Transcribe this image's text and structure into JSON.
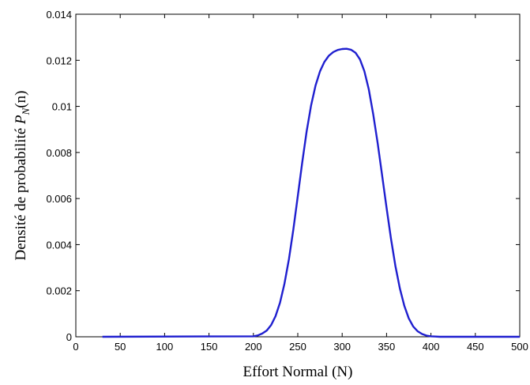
{
  "chart_data": {
    "type": "line",
    "xlabel": "Effort Normal (N)",
    "ylabel_prefix": "Densité de probabilité ",
    "ylabel_symbol": "P",
    "ylabel_subscript": "N",
    "ylabel_suffix": "(n)",
    "xlim": [
      0,
      500
    ],
    "ylim": [
      0,
      0.014
    ],
    "xticks": [
      0,
      50,
      100,
      150,
      200,
      250,
      300,
      350,
      400,
      450,
      500
    ],
    "xtick_labels": [
      "0",
      "50",
      "100",
      "150",
      "200",
      "250",
      "300",
      "350",
      "400",
      "450",
      "500"
    ],
    "yticks": [
      0,
      0.002,
      0.004,
      0.006,
      0.008,
      0.01,
      0.012,
      0.014
    ],
    "ytick_labels": [
      "0",
      "0.002",
      "0.004",
      "0.006",
      "0.008",
      "0.01",
      "0.012",
      "0.014"
    ],
    "grid": false,
    "series": [
      {
        "color": "#1f1fcf",
        "x": [
          30,
          200,
          205,
          210,
          215,
          220,
          225,
          230,
          235,
          240,
          245,
          250,
          255,
          260,
          265,
          270,
          275,
          280,
          285,
          290,
          295,
          300,
          305,
          310,
          315,
          320,
          325,
          330,
          335,
          340,
          345,
          350,
          355,
          360,
          365,
          370,
          375,
          380,
          385,
          390,
          395,
          400,
          405,
          410,
          415,
          420,
          500
        ],
        "y": [
          0,
          2e-05,
          6e-05,
          0.00014,
          0.00027,
          0.00051,
          0.0009,
          0.00148,
          0.0023,
          0.00337,
          0.00466,
          0.0061,
          0.00756,
          0.00891,
          0.01005,
          0.01091,
          0.01152,
          0.01193,
          0.0122,
          0.01236,
          0.01245,
          0.01249,
          0.0125,
          0.01246,
          0.01233,
          0.01204,
          0.01153,
          0.01074,
          0.00966,
          0.00839,
          0.007,
          0.0056,
          0.00426,
          0.00307,
          0.00209,
          0.00134,
          0.0008,
          0.00045,
          0.00024,
          0.00012,
          5e-05,
          2e-05,
          1e-05,
          0,
          0,
          0,
          0
        ]
      }
    ]
  }
}
